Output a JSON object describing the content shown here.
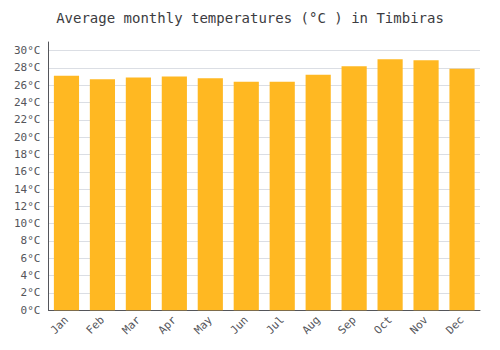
{
  "chart_data": {
    "type": "bar",
    "title": "Average monthly temperatures (°C ) in Timbiras",
    "categories": [
      "Jan",
      "Feb",
      "Mar",
      "Apr",
      "May",
      "Jun",
      "Jul",
      "Aug",
      "Sep",
      "Oct",
      "Nov",
      "Dec"
    ],
    "values": [
      27.1,
      26.7,
      26.9,
      27.0,
      26.8,
      26.4,
      26.4,
      27.2,
      28.2,
      29.0,
      28.9,
      27.9
    ],
    "color": "#FFB822",
    "ylim": [
      0,
      31
    ],
    "yticks": [
      {
        "value": 0,
        "label": "0°C"
      },
      {
        "value": 2,
        "label": "2°C"
      },
      {
        "value": 4,
        "label": "4°C"
      },
      {
        "value": 6,
        "label": "6°C"
      },
      {
        "value": 8,
        "label": "8°C"
      },
      {
        "value": 10,
        "label": "10°C"
      },
      {
        "value": 12,
        "label": "12°C"
      },
      {
        "value": 14,
        "label": "14°C"
      },
      {
        "value": 16,
        "label": "16°C"
      },
      {
        "value": 18,
        "label": "18°C"
      },
      {
        "value": 20,
        "label": "20°C"
      },
      {
        "value": 22,
        "label": "22°C"
      },
      {
        "value": 24,
        "label": "24°C"
      },
      {
        "value": 26,
        "label": "26°C"
      },
      {
        "value": 28,
        "label": "28°C"
      },
      {
        "value": 30,
        "label": "30°C"
      }
    ],
    "grid": true
  }
}
